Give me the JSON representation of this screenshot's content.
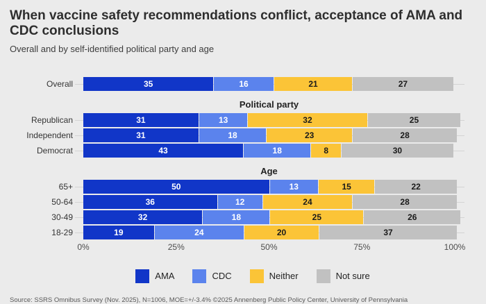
{
  "header": {
    "title": "When vaccine safety recommendations conflict, acceptance of AMA and CDC conclusions",
    "subtitle": "Overall and by self-identified political party and age"
  },
  "chart_data": {
    "type": "bar",
    "variant": "horizontal-stacked",
    "xlabel": "",
    "ylabel": "",
    "xlim": [
      0,
      100
    ],
    "x_ticks": [
      "0%",
      "25%",
      "50%",
      "75%",
      "100%"
    ],
    "x_tick_positions": [
      0,
      25,
      50,
      75,
      100
    ],
    "legend_position": "bottom",
    "series_names": [
      "AMA",
      "CDC",
      "Neither",
      "Not sure"
    ],
    "series_colors": [
      "#1136c8",
      "#5b83ed",
      "#fbc437",
      "#c1c1c1"
    ],
    "value_label_colors": [
      "#ffffff",
      "#ffffff",
      "#1a1a1a",
      "#1a1a1a"
    ],
    "groups": [
      {
        "header": "",
        "rows": [
          {
            "label": "Overall",
            "values": [
              35,
              16,
              21,
              27
            ]
          }
        ]
      },
      {
        "header": "Political party",
        "rows": [
          {
            "label": "Republican",
            "values": [
              31,
              13,
              32,
              25
            ]
          },
          {
            "label": "Independent",
            "values": [
              31,
              18,
              23,
              28
            ]
          },
          {
            "label": "Democrat",
            "values": [
              43,
              18,
              8,
              30
            ]
          }
        ]
      },
      {
        "header": "Age",
        "rows": [
          {
            "label": "65+",
            "values": [
              50,
              13,
              15,
              22
            ]
          },
          {
            "label": "50-64",
            "values": [
              36,
              12,
              24,
              28
            ]
          },
          {
            "label": "30-49",
            "values": [
              32,
              18,
              25,
              26
            ]
          },
          {
            "label": "18-29",
            "values": [
              19,
              24,
              20,
              37
            ]
          }
        ]
      }
    ],
    "legend": [
      {
        "label": "AMA",
        "color": "#1136c8"
      },
      {
        "label": "CDC",
        "color": "#5b83ed"
      },
      {
        "label": "Neither",
        "color": "#fbc437"
      },
      {
        "label": "Not sure",
        "color": "#c1c1c1"
      }
    ]
  },
  "footer": {
    "source": "Source: SSRS Omnibus Survey (Nov. 2025), N=1006, MOE=+/-3.4% ©2025 Annenberg Public Policy Center, University of Pennsylvania"
  }
}
